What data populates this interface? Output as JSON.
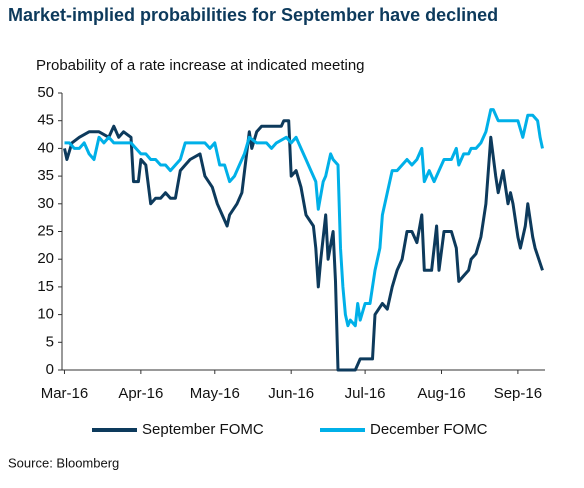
{
  "chart_data": {
    "type": "line",
    "title": "Market-implied probabilities for September have declined",
    "subtitle": "Probability of a rate increase at indicated meeting",
    "source": "Source: Bloomberg",
    "legend": "bottom",
    "xlim": [
      -1,
      195
    ],
    "xticks": [
      {
        "value": 0,
        "label": "Mar-16"
      },
      {
        "value": 31,
        "label": "Apr-16"
      },
      {
        "value": 61,
        "label": "May-16"
      },
      {
        "value": 92,
        "label": "Jun-16"
      },
      {
        "value": 122,
        "label": "Jul-16"
      },
      {
        "value": 153,
        "label": "Aug-16"
      },
      {
        "value": 184,
        "label": "Sep-16"
      }
    ],
    "ylim": [
      0,
      50
    ],
    "yticks": [
      0,
      5,
      10,
      15,
      20,
      25,
      30,
      35,
      40,
      45,
      50
    ],
    "grid": false,
    "series": [
      {
        "name": "September FOMC",
        "color": "#0d3a5c",
        "x": [
          0,
          1,
          3,
          6,
          10,
          14,
          18,
          20,
          22,
          24,
          27,
          28,
          30,
          31,
          33,
          35,
          37,
          39,
          41,
          43,
          45,
          47,
          49,
          51,
          55,
          57,
          60,
          62,
          64,
          66,
          67,
          70,
          72,
          75,
          76,
          78,
          80,
          84,
          88,
          89,
          91,
          92,
          94,
          96,
          98,
          101,
          102,
          103,
          104,
          106,
          107,
          109,
          110,
          111,
          113,
          115,
          118,
          120,
          122,
          125,
          126,
          129,
          131,
          133,
          135,
          137,
          139,
          141,
          143,
          145,
          146,
          149,
          151,
          152,
          154,
          155,
          157,
          159,
          160,
          162,
          164,
          165,
          167,
          169,
          171,
          173,
          175,
          176,
          178,
          180,
          181,
          182,
          184,
          185,
          187,
          188,
          190,
          191,
          194
        ],
        "values": [
          40,
          38,
          41,
          42,
          43,
          43,
          42,
          44,
          42,
          43,
          42,
          34,
          34,
          38,
          37,
          30,
          31,
          31,
          32,
          31,
          31,
          36,
          37,
          38,
          39,
          35,
          33,
          30,
          28,
          26,
          28,
          30,
          32,
          43,
          40,
          43,
          44,
          44,
          44,
          45,
          45,
          35,
          36,
          33,
          28,
          26,
          22,
          15,
          20,
          28,
          20,
          25,
          16,
          0,
          0,
          0,
          0,
          2,
          2,
          2,
          10,
          12,
          11,
          15,
          18,
          20,
          25,
          25,
          23,
          28,
          18,
          18,
          26,
          18,
          25,
          25,
          25,
          22,
          16,
          17,
          18,
          20,
          21,
          24,
          30,
          42,
          35,
          32,
          36,
          30,
          32,
          30,
          24,
          22,
          26,
          30,
          24,
          22,
          18
        ]
      },
      {
        "name": "December FOMC",
        "color": "#00b0e8",
        "x": [
          0,
          2,
          4,
          6,
          8,
          10,
          12,
          14,
          16,
          18,
          20,
          22,
          27,
          29,
          31,
          33,
          35,
          37,
          39,
          41,
          43,
          45,
          47,
          49,
          53,
          57,
          59,
          61,
          63,
          65,
          67,
          69,
          71,
          73,
          75,
          78,
          80,
          82,
          84,
          86,
          90,
          92,
          94,
          96,
          98,
          100,
          102,
          103,
          105,
          106,
          108,
          109,
          111,
          112,
          113,
          114,
          115,
          116,
          118,
          119,
          120,
          122,
          124,
          126,
          128,
          129,
          131,
          133,
          135,
          137,
          139,
          141,
          143,
          145,
          146,
          148,
          150,
          152,
          154,
          155,
          157,
          159,
          160,
          162,
          164,
          165,
          167,
          169,
          171,
          173,
          174,
          176,
          180,
          184,
          186,
          188,
          190,
          192,
          193,
          194
        ],
        "values": [
          41,
          41,
          40,
          40,
          41,
          39,
          38,
          42,
          41,
          42,
          41,
          41,
          41,
          40,
          39,
          39,
          38,
          38,
          37,
          37,
          36,
          37,
          38,
          41,
          41,
          41,
          40,
          41,
          37,
          37,
          34,
          35,
          37,
          39,
          42,
          41,
          41,
          41,
          40,
          41,
          42,
          41,
          42,
          40,
          38,
          36,
          34,
          29,
          34,
          35,
          39,
          38,
          37,
          22,
          15,
          10,
          8,
          9,
          8,
          12,
          9,
          12,
          12,
          18,
          22,
          28,
          32,
          36,
          36,
          37,
          38,
          37,
          38,
          40,
          34,
          36,
          34,
          36,
          38,
          38,
          38,
          40,
          37,
          39,
          39,
          40,
          40,
          41,
          43,
          47,
          47,
          45,
          45,
          45,
          42,
          46,
          46,
          45,
          42,
          40
        ]
      }
    ]
  }
}
